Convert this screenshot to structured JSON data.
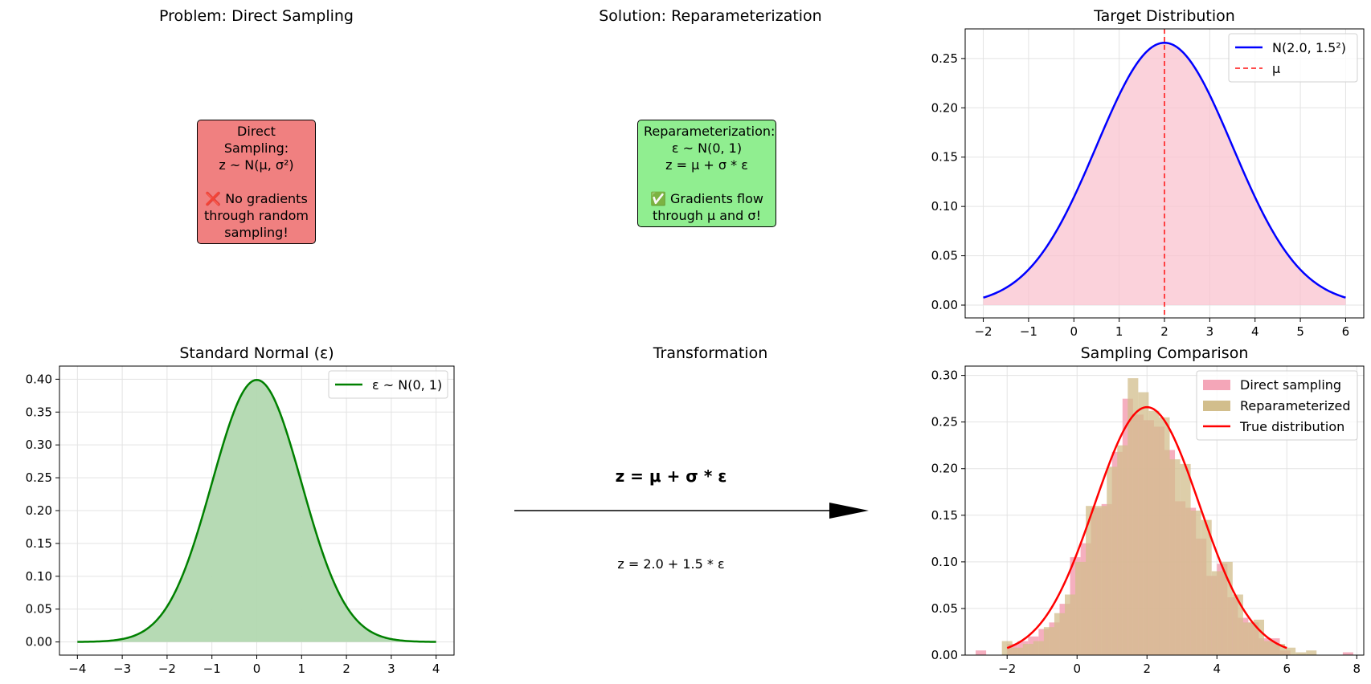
{
  "panels": {
    "direct": {
      "title": "Problem: Direct Sampling",
      "box_text": "Direct Sampling:\nz ~ N(μ, σ²)\n\n❌ No gradients\nthrough random\nsampling!",
      "box_color": "#f08080"
    },
    "reparam": {
      "title": "Solution: Reparameterization",
      "box_text": "Reparameterization:\nε ~ N(0, 1)\nz = μ + σ * ε\n\n✅ Gradients flow\nthrough μ and σ!",
      "box_color": "#90ee90"
    },
    "transform": {
      "title": "Transformation",
      "formula": "z = μ + σ * ε",
      "example": "z = 2.0 + 1.5 * ε"
    }
  },
  "chart_data": [
    {
      "id": "target",
      "type": "line",
      "title": "Target Distribution",
      "distribution": {
        "mu": 2.0,
        "sigma": 1.5
      },
      "x_range": [
        -2,
        6
      ],
      "xlim": [
        -2.4,
        6.4
      ],
      "ylim": [
        -0.013,
        0.28
      ],
      "xticks": [
        -2,
        -1,
        0,
        1,
        2,
        3,
        4,
        5,
        6
      ],
      "yticks": [
        0.0,
        0.05,
        0.1,
        0.15,
        0.2,
        0.25
      ],
      "grid": true,
      "fill_color": "#f9c3cf",
      "series": [
        {
          "name": "N(2.0, 1.5²)",
          "color": "#0000ff",
          "style": "solid"
        },
        {
          "name": "μ",
          "color": "#ff3333",
          "style": "dashed",
          "x": 2.0
        }
      ],
      "legend": "top-right"
    },
    {
      "id": "standard",
      "type": "area",
      "title": "Standard Normal (ε)",
      "distribution": {
        "mu": 0,
        "sigma": 1
      },
      "x_range": [
        -4,
        4
      ],
      "xlim": [
        -4.4,
        4.4
      ],
      "ylim": [
        -0.02,
        0.42
      ],
      "xticks": [
        -4,
        -3,
        -2,
        -1,
        0,
        1,
        2,
        3,
        4
      ],
      "yticks": [
        0.0,
        0.05,
        0.1,
        0.15,
        0.2,
        0.25,
        0.3,
        0.35,
        0.4
      ],
      "grid": true,
      "fill_color": "#b2d8b0",
      "series": [
        {
          "name": "ε ~ N(0, 1)",
          "color": "#008000",
          "style": "solid"
        }
      ],
      "legend": "top-right"
    },
    {
      "id": "comparison",
      "type": "bar",
      "title": "Sampling Comparison",
      "xlim": [
        -3.2,
        8.2
      ],
      "ylim": [
        0,
        0.31
      ],
      "xticks": [
        -2,
        0,
        2,
        4,
        6,
        8
      ],
      "yticks": [
        0.0,
        0.05,
        0.1,
        0.15,
        0.2,
        0.25,
        0.3
      ],
      "grid": true,
      "series": [
        {
          "name": "Direct sampling",
          "color": "#f4a6b8",
          "bins": [
            [
              -2.9,
              -2.6,
              0.005
            ],
            [
              -2.6,
              -2.3,
              0.0
            ],
            [
              -2.3,
              -2.0,
              0.0
            ],
            [
              -2.0,
              -1.7,
              0.012
            ],
            [
              -1.7,
              -1.4,
              0.015
            ],
            [
              -1.4,
              -1.1,
              0.02
            ],
            [
              -1.1,
              -0.8,
              0.028
            ],
            [
              -0.8,
              -0.5,
              0.035
            ],
            [
              -0.5,
              -0.2,
              0.055
            ],
            [
              -0.2,
              0.1,
              0.105
            ],
            [
              0.1,
              0.4,
              0.12
            ],
            [
              0.4,
              0.7,
              0.158
            ],
            [
              0.7,
              1.0,
              0.162
            ],
            [
              1.0,
              1.3,
              0.218
            ],
            [
              1.3,
              1.6,
              0.275
            ],
            [
              1.6,
              1.9,
              0.258
            ],
            [
              1.9,
              2.2,
              0.252
            ],
            [
              2.2,
              2.5,
              0.245
            ],
            [
              2.5,
              2.8,
              0.22
            ],
            [
              2.8,
              3.1,
              0.165
            ],
            [
              3.1,
              3.4,
              0.158
            ],
            [
              3.4,
              3.7,
              0.125
            ],
            [
              3.7,
              4.0,
              0.085
            ],
            [
              4.0,
              4.3,
              0.098
            ],
            [
              4.3,
              4.6,
              0.062
            ],
            [
              4.6,
              4.9,
              0.04
            ],
            [
              4.9,
              5.2,
              0.035
            ],
            [
              5.2,
              5.5,
              0.018
            ],
            [
              5.5,
              5.8,
              0.018
            ],
            [
              5.8,
              6.1,
              0.005
            ],
            [
              6.1,
              6.4,
              0.0
            ],
            [
              6.4,
              6.7,
              0.0
            ],
            [
              6.7,
              7.0,
              0.0
            ],
            [
              7.0,
              7.3,
              0.0
            ],
            [
              7.3,
              7.6,
              0.0
            ],
            [
              7.6,
              7.9,
              0.003
            ]
          ]
        },
        {
          "name": "Reparameterized",
          "color": "#d2be8c",
          "bins": [
            [
              -2.15,
              -1.85,
              0.015
            ],
            [
              -1.85,
              -1.55,
              0.008
            ],
            [
              -1.55,
              -1.25,
              0.012
            ],
            [
              -1.25,
              -0.95,
              0.015
            ],
            [
              -0.95,
              -0.65,
              0.03
            ],
            [
              -0.65,
              -0.35,
              0.045
            ],
            [
              -0.35,
              -0.05,
              0.065
            ],
            [
              -0.05,
              0.25,
              0.1
            ],
            [
              0.25,
              0.55,
              0.16
            ],
            [
              0.55,
              0.85,
              0.16
            ],
            [
              0.85,
              1.15,
              0.202
            ],
            [
              1.15,
              1.45,
              0.225
            ],
            [
              1.45,
              1.75,
              0.297
            ],
            [
              1.75,
              2.05,
              0.282
            ],
            [
              2.05,
              2.35,
              0.262
            ],
            [
              2.35,
              2.65,
              0.255
            ],
            [
              2.65,
              2.95,
              0.21
            ],
            [
              2.95,
              3.25,
              0.205
            ],
            [
              3.25,
              3.55,
              0.155
            ],
            [
              3.55,
              3.85,
              0.145
            ],
            [
              3.85,
              4.15,
              0.09
            ],
            [
              4.15,
              4.45,
              0.1
            ],
            [
              4.45,
              4.75,
              0.065
            ],
            [
              4.75,
              5.05,
              0.035
            ],
            [
              5.05,
              5.35,
              0.038
            ],
            [
              5.35,
              5.65,
              0.015
            ],
            [
              5.65,
              5.95,
              0.012
            ],
            [
              5.95,
              6.25,
              0.008
            ],
            [
              6.25,
              6.55,
              0.003
            ],
            [
              6.55,
              6.85,
              0.005
            ]
          ]
        },
        {
          "name": "True distribution",
          "type": "line",
          "color": "#ff0000",
          "distribution": {
            "mu": 2.0,
            "sigma": 1.5
          },
          "x_range": [
            -2,
            6
          ]
        }
      ],
      "legend": "top-right"
    }
  ]
}
